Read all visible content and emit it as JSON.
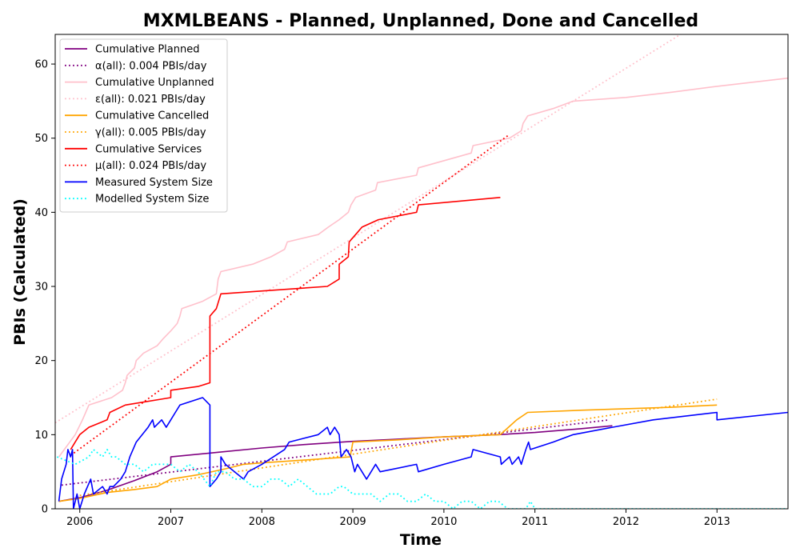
{
  "chart_data": {
    "type": "line",
    "title": "MXMLBEANS - Planned, Unplanned, Done  and Cancelled",
    "xlabel": "Time",
    "ylabel": "PBIs (Calculated)",
    "xlim": [
      2005.73,
      2013.78
    ],
    "ylim": [
      0,
      64
    ],
    "x_ticks": [
      2006,
      2007,
      2008,
      2009,
      2010,
      2011,
      2012,
      2013
    ],
    "y_ticks": [
      0,
      10,
      20,
      30,
      40,
      50,
      60
    ],
    "grid": false,
    "legend_position": "top-left",
    "series": [
      {
        "name": "Cumulative Planned",
        "color": "#800080",
        "style": "solid",
        "points": [
          [
            2005.77,
            1
          ],
          [
            2006.0,
            1.5
          ],
          [
            2006.3,
            2.5
          ],
          [
            2006.6,
            3.8
          ],
          [
            2006.85,
            5.0
          ],
          [
            2007.0,
            6.0
          ],
          [
            2007.0,
            7.0
          ],
          [
            2007.5,
            7.6
          ],
          [
            2008.0,
            8.2
          ],
          [
            2008.5,
            8.7
          ],
          [
            2009.0,
            9.1
          ],
          [
            2009.5,
            9.4
          ],
          [
            2010.0,
            9.7
          ],
          [
            2010.6,
            10.0
          ],
          [
            2011.0,
            10.3
          ],
          [
            2011.5,
            10.8
          ],
          [
            2011.85,
            11.2
          ]
        ]
      },
      {
        "name": "α(all): 0.004 PBIs/day",
        "color": "#800080",
        "style": "dotted",
        "points": [
          [
            2005.8,
            3.2
          ],
          [
            2011.82,
            12.0
          ]
        ]
      },
      {
        "name": "Cumulative Unplanned",
        "color": "#ffc0cb",
        "style": "solid",
        "points": [
          [
            2005.77,
            7
          ],
          [
            2005.95,
            10
          ],
          [
            2006.03,
            12
          ],
          [
            2006.1,
            14
          ],
          [
            2006.35,
            15
          ],
          [
            2006.47,
            16
          ],
          [
            2006.5,
            17
          ],
          [
            2006.52,
            18
          ],
          [
            2006.6,
            19
          ],
          [
            2006.62,
            20
          ],
          [
            2006.7,
            21
          ],
          [
            2006.85,
            22
          ],
          [
            2006.92,
            23
          ],
          [
            2007.0,
            24
          ],
          [
            2007.07,
            25
          ],
          [
            2007.1,
            26
          ],
          [
            2007.12,
            27
          ],
          [
            2007.35,
            28
          ],
          [
            2007.5,
            29
          ],
          [
            2007.52,
            31
          ],
          [
            2007.55,
            32
          ],
          [
            2007.9,
            33
          ],
          [
            2008.1,
            34
          ],
          [
            2008.25,
            35
          ],
          [
            2008.28,
            36
          ],
          [
            2008.62,
            37
          ],
          [
            2008.73,
            38
          ],
          [
            2008.85,
            39
          ],
          [
            2008.95,
            40
          ],
          [
            2008.98,
            41
          ],
          [
            2009.03,
            42
          ],
          [
            2009.25,
            43
          ],
          [
            2009.27,
            44
          ],
          [
            2009.7,
            45
          ],
          [
            2009.72,
            46
          ],
          [
            2010.3,
            48
          ],
          [
            2010.32,
            49
          ],
          [
            2010.72,
            50
          ],
          [
            2010.85,
            51
          ],
          [
            2010.87,
            52
          ],
          [
            2010.92,
            53
          ],
          [
            2011.2,
            54
          ],
          [
            2011.42,
            55
          ],
          [
            2012.0,
            55.5
          ],
          [
            2012.5,
            56.2
          ],
          [
            2013.0,
            57
          ],
          [
            2013.78,
            58.1
          ]
        ]
      },
      {
        "name": "ε(all): 0.021 PBIs/day",
        "color": "#ffc0cb",
        "style": "dotted",
        "points": [
          [
            2005.73,
            11.6
          ],
          [
            2012.6,
            64
          ]
        ]
      },
      {
        "name": "Cumulative Cancelled",
        "color": "#ffa500",
        "style": "solid",
        "points": [
          [
            2005.77,
            1
          ],
          [
            2006.0,
            1.4
          ],
          [
            2006.3,
            2.2
          ],
          [
            2006.6,
            2.6
          ],
          [
            2006.85,
            3.0
          ],
          [
            2007.0,
            4.0
          ],
          [
            2007.3,
            4.6
          ],
          [
            2007.6,
            5.4
          ],
          [
            2007.8,
            6.0
          ],
          [
            2008.0,
            6.2
          ],
          [
            2008.5,
            6.6
          ],
          [
            2008.97,
            7.0
          ],
          [
            2009.0,
            9.0
          ],
          [
            2009.5,
            9.3
          ],
          [
            2010.0,
            9.7
          ],
          [
            2010.62,
            10.0
          ],
          [
            2010.8,
            12.0
          ],
          [
            2010.92,
            13.0
          ],
          [
            2011.5,
            13.3
          ],
          [
            2012.0,
            13.5
          ],
          [
            2012.5,
            13.7
          ],
          [
            2013.0,
            14.0
          ]
        ]
      },
      {
        "name": "γ(all): 0.005 PBIs/day",
        "color": "#ffa500",
        "style": "dotted",
        "points": [
          [
            2006.0,
            1.8
          ],
          [
            2013.0,
            14.8
          ]
        ]
      },
      {
        "name": "Cumulative Services",
        "color": "#ff0000",
        "style": "solid",
        "points": [
          [
            2005.9,
            8
          ],
          [
            2005.95,
            9
          ],
          [
            2006.0,
            10
          ],
          [
            2006.1,
            11
          ],
          [
            2006.3,
            12
          ],
          [
            2006.33,
            13
          ],
          [
            2006.5,
            14
          ],
          [
            2007.0,
            15
          ],
          [
            2007.0,
            16
          ],
          [
            2007.3,
            16.5
          ],
          [
            2007.43,
            17
          ],
          [
            2007.43,
            26
          ],
          [
            2007.5,
            27
          ],
          [
            2007.55,
            29
          ],
          [
            2008.72,
            30
          ],
          [
            2008.85,
            31
          ],
          [
            2008.85,
            33
          ],
          [
            2008.95,
            34
          ],
          [
            2008.96,
            36
          ],
          [
            2009.03,
            37
          ],
          [
            2009.1,
            38
          ],
          [
            2009.28,
            39
          ],
          [
            2009.7,
            40
          ],
          [
            2009.72,
            41
          ],
          [
            2010.62,
            42
          ]
        ]
      },
      {
        "name": "μ(all): 0.024 PBIs/day",
        "color": "#ff0000",
        "style": "dotted",
        "points": [
          [
            2005.9,
            7.2
          ],
          [
            2010.72,
            50.5
          ]
        ]
      },
      {
        "name": "Measured System Size",
        "color": "#0000ff",
        "style": "solid",
        "points": [
          [
            2005.77,
            1
          ],
          [
            2005.8,
            4
          ],
          [
            2005.85,
            6
          ],
          [
            2005.87,
            8
          ],
          [
            2005.9,
            7
          ],
          [
            2005.92,
            8
          ],
          [
            2005.93,
            0
          ],
          [
            2005.97,
            2
          ],
          [
            2006.0,
            0
          ],
          [
            2006.05,
            2
          ],
          [
            2006.12,
            4
          ],
          [
            2006.15,
            2
          ],
          [
            2006.25,
            3
          ],
          [
            2006.3,
            2
          ],
          [
            2006.33,
            3
          ],
          [
            2006.37,
            3
          ],
          [
            2006.45,
            4
          ],
          [
            2006.5,
            5
          ],
          [
            2006.55,
            7
          ],
          [
            2006.62,
            9
          ],
          [
            2006.75,
            11
          ],
          [
            2006.8,
            12
          ],
          [
            2006.82,
            11
          ],
          [
            2006.9,
            12
          ],
          [
            2006.95,
            11
          ],
          [
            2007.0,
            12
          ],
          [
            2007.05,
            13
          ],
          [
            2007.1,
            14
          ],
          [
            2007.35,
            15
          ],
          [
            2007.43,
            14
          ],
          [
            2007.43,
            12
          ],
          [
            2007.43,
            3
          ],
          [
            2007.5,
            4
          ],
          [
            2007.55,
            5
          ],
          [
            2007.55,
            7
          ],
          [
            2007.6,
            6
          ],
          [
            2007.7,
            5
          ],
          [
            2007.8,
            4
          ],
          [
            2007.85,
            5
          ],
          [
            2008.0,
            6
          ],
          [
            2008.25,
            8
          ],
          [
            2008.3,
            9
          ],
          [
            2008.62,
            10
          ],
          [
            2008.72,
            11
          ],
          [
            2008.75,
            10
          ],
          [
            2008.8,
            11
          ],
          [
            2008.85,
            10
          ],
          [
            2008.87,
            7
          ],
          [
            2008.93,
            8
          ],
          [
            2008.98,
            7
          ],
          [
            2009.0,
            6
          ],
          [
            2009.02,
            5
          ],
          [
            2009.05,
            6
          ],
          [
            2009.15,
            4
          ],
          [
            2009.25,
            6
          ],
          [
            2009.3,
            5
          ],
          [
            2009.7,
            6
          ],
          [
            2009.72,
            5
          ],
          [
            2010.0,
            6
          ],
          [
            2010.3,
            7
          ],
          [
            2010.32,
            8
          ],
          [
            2010.62,
            7
          ],
          [
            2010.63,
            6
          ],
          [
            2010.72,
            7
          ],
          [
            2010.75,
            6
          ],
          [
            2010.82,
            7
          ],
          [
            2010.85,
            6
          ],
          [
            2010.9,
            8
          ],
          [
            2010.93,
            9
          ],
          [
            2010.95,
            8
          ],
          [
            2011.2,
            9
          ],
          [
            2011.42,
            10
          ],
          [
            2011.85,
            11
          ],
          [
            2012.3,
            12
          ],
          [
            2013.0,
            13
          ],
          [
            2013.0,
            12
          ],
          [
            2013.78,
            13
          ]
        ]
      },
      {
        "name": "Modelled System Size",
        "color": "#00ffff",
        "style": "dotted",
        "points": [
          [
            2005.75,
            7
          ],
          [
            2005.95,
            6
          ],
          [
            2006.1,
            7
          ],
          [
            2006.15,
            8
          ],
          [
            2006.25,
            7
          ],
          [
            2006.3,
            8
          ],
          [
            2006.35,
            7
          ],
          [
            2006.4,
            7
          ],
          [
            2006.5,
            6
          ],
          [
            2006.6,
            6
          ],
          [
            2006.7,
            5
          ],
          [
            2006.8,
            6
          ],
          [
            2006.9,
            6
          ],
          [
            2007.0,
            6
          ],
          [
            2007.1,
            5
          ],
          [
            2007.2,
            6
          ],
          [
            2007.3,
            5
          ],
          [
            2007.43,
            3
          ],
          [
            2007.5,
            5
          ],
          [
            2007.6,
            5
          ],
          [
            2007.7,
            4
          ],
          [
            2007.8,
            4
          ],
          [
            2007.9,
            3
          ],
          [
            2008.0,
            3
          ],
          [
            2008.1,
            4
          ],
          [
            2008.2,
            4
          ],
          [
            2008.3,
            3
          ],
          [
            2008.4,
            4
          ],
          [
            2008.5,
            3
          ],
          [
            2008.6,
            2
          ],
          [
            2008.75,
            2
          ],
          [
            2008.85,
            3
          ],
          [
            2008.9,
            3
          ],
          [
            2009.0,
            2
          ],
          [
            2009.2,
            2
          ],
          [
            2009.3,
            1
          ],
          [
            2009.4,
            2
          ],
          [
            2009.5,
            2
          ],
          [
            2009.6,
            1
          ],
          [
            2009.7,
            1
          ],
          [
            2009.8,
            2
          ],
          [
            2009.9,
            1
          ],
          [
            2010.0,
            1
          ],
          [
            2010.1,
            0
          ],
          [
            2010.2,
            1
          ],
          [
            2010.3,
            1
          ],
          [
            2010.4,
            0
          ],
          [
            2010.5,
            1
          ],
          [
            2010.6,
            1
          ],
          [
            2010.7,
            0
          ],
          [
            2010.9,
            0
          ],
          [
            2010.95,
            1
          ],
          [
            2011.0,
            0
          ],
          [
            2013.78,
            0
          ]
        ]
      }
    ]
  }
}
